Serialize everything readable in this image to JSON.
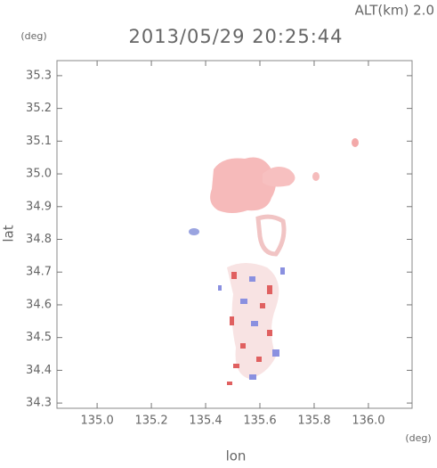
{
  "chart_data": {
    "type": "map",
    "title": "2013/05/29 20:25:44",
    "subtitle": "ALT(km) 2.0",
    "x_label": "lon",
    "x_unit": "(deg)",
    "y_label": "lat",
    "y_unit": "(deg)",
    "xlim": [
      134.852,
      136.161
    ],
    "ylim": [
      34.284,
      35.346
    ],
    "xticks": [
      {
        "value": 135,
        "label": "135.0"
      },
      135.2,
      135.4,
      135.6,
      135.8,
      {
        "value": 136,
        "label": "136.0"
      }
    ],
    "yticks": [
      34.3,
      34.4,
      34.5,
      34.6,
      34.7,
      34.8,
      34.9,
      {
        "value": 35,
        "label": "35.0"
      },
      35.1,
      35.2,
      35.3
    ]
  }
}
